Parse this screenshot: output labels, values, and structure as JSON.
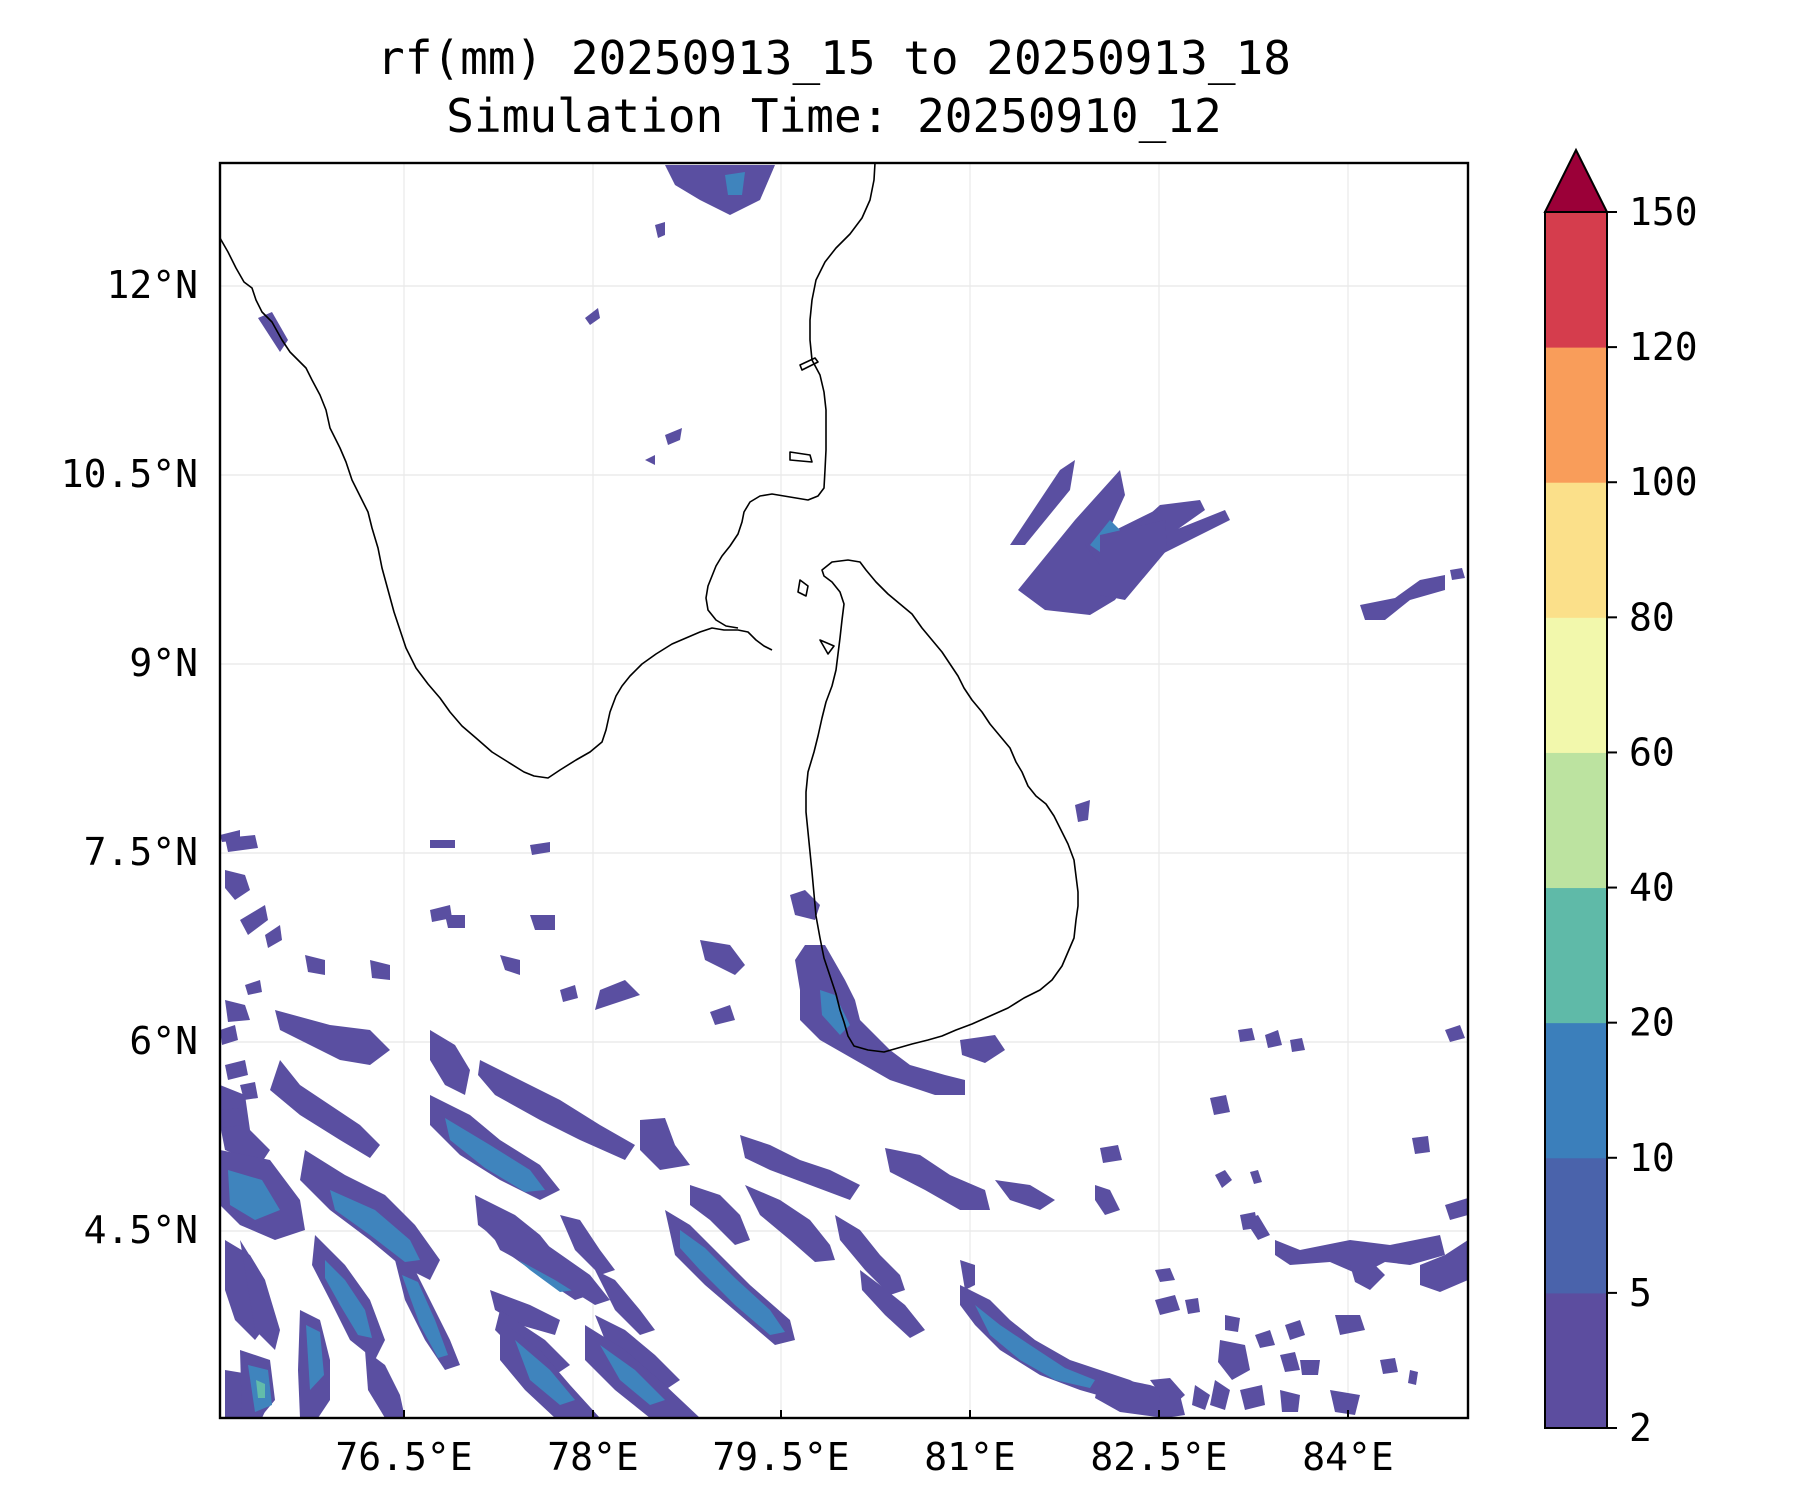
{
  "title": {
    "line1": "rf(mm) 20250913_15 to 20250913_18",
    "line2": "Simulation Time: 20250910_12"
  },
  "map": {
    "x_ticks": [
      "76.5°E",
      "78°E",
      "79.5°E",
      "81°E",
      "82.5°E",
      "84°E"
    ],
    "y_ticks": [
      "12°N",
      "10.5°N",
      "9°N",
      "7.5°N",
      "6°N",
      "4.5°N"
    ],
    "lon_range": [
      75.0,
      84.9
    ],
    "lat_range": [
      3.0,
      12.95
    ],
    "grid": true
  },
  "colorbar": {
    "levels": [
      "2",
      "5",
      "10",
      "20",
      "40",
      "60",
      "80",
      "100",
      "120",
      "150"
    ],
    "colors": [
      "#5c4d9f",
      "#4a63ab",
      "#3b7fbb",
      "#5fbaa8",
      "#bce3a0",
      "#f2f8ac",
      "#fbe08a",
      "#f99d5a",
      "#d53d4d",
      "#9b0038"
    ],
    "extend": "max"
  }
}
